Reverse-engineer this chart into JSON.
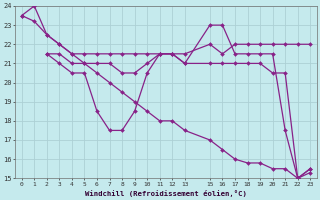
{
  "xlabel": "Windchill (Refroidissement éolien,°C)",
  "xlim": [
    -0.5,
    23.5
  ],
  "ylim": [
    15,
    24
  ],
  "yticks": [
    15,
    16,
    17,
    18,
    19,
    20,
    21,
    22,
    23,
    24
  ],
  "xtick_positions": [
    0,
    1,
    2,
    3,
    4,
    5,
    6,
    7,
    8,
    9,
    10,
    11,
    12,
    13,
    15,
    16,
    17,
    18,
    19,
    20,
    21,
    22,
    23
  ],
  "xtick_labels": [
    "0",
    "1",
    "2",
    "3",
    "4",
    "5",
    "6",
    "7",
    "8",
    "9",
    "10",
    "11",
    "12",
    "13",
    "15",
    "16",
    "17",
    "18",
    "19",
    "20",
    "21",
    "22",
    "23"
  ],
  "background_color": "#c5eaed",
  "grid_color": "#acd0d5",
  "line_color": "#882288",
  "lines": [
    {
      "x": [
        0,
        1,
        2,
        3,
        4,
        5,
        6,
        7,
        8,
        9,
        10,
        11,
        12,
        13,
        15,
        16,
        17,
        18,
        19,
        20,
        21,
        22,
        23
      ],
      "y": [
        23.5,
        24.0,
        22.5,
        22.0,
        21.5,
        21.5,
        21.5,
        21.5,
        21.5,
        21.5,
        21.5,
        21.5,
        21.5,
        21.5,
        22.0,
        21.5,
        22.0,
        22.0,
        22.0,
        22.0,
        22.0,
        22.0,
        22.0
      ]
    },
    {
      "x": [
        2,
        3,
        4,
        5,
        6,
        7,
        8,
        9,
        10,
        11,
        12,
        13,
        15,
        16,
        17,
        18,
        19,
        20,
        21,
        22,
        23
      ],
      "y": [
        21.5,
        21.5,
        21.0,
        21.0,
        21.0,
        21.0,
        20.5,
        20.5,
        21.0,
        21.5,
        21.5,
        21.0,
        21.0,
        21.0,
        21.0,
        21.0,
        21.0,
        20.5,
        20.5,
        15.0,
        15.5
      ]
    },
    {
      "x": [
        2,
        3,
        4,
        5,
        6,
        7,
        8,
        9,
        10,
        11,
        12,
        13,
        15,
        16,
        17,
        18,
        19,
        20,
        21,
        22,
        23
      ],
      "y": [
        21.5,
        21.0,
        20.5,
        20.5,
        18.5,
        17.5,
        17.5,
        18.5,
        20.5,
        21.5,
        21.5,
        21.0,
        23.0,
        23.0,
        21.5,
        21.5,
        21.5,
        21.5,
        17.5,
        15.0,
        15.5
      ]
    },
    {
      "x": [
        0,
        1,
        2,
        3,
        4,
        5,
        6,
        7,
        8,
        9,
        10,
        11,
        12,
        13,
        15,
        16,
        17,
        18,
        19,
        20,
        21,
        22,
        23
      ],
      "y": [
        23.5,
        23.2,
        22.5,
        22.0,
        21.5,
        21.0,
        20.5,
        20.0,
        19.5,
        19.0,
        18.5,
        18.0,
        18.0,
        17.5,
        17.0,
        16.5,
        16.0,
        15.8,
        15.8,
        15.5,
        15.5,
        15.0,
        15.3
      ]
    }
  ]
}
